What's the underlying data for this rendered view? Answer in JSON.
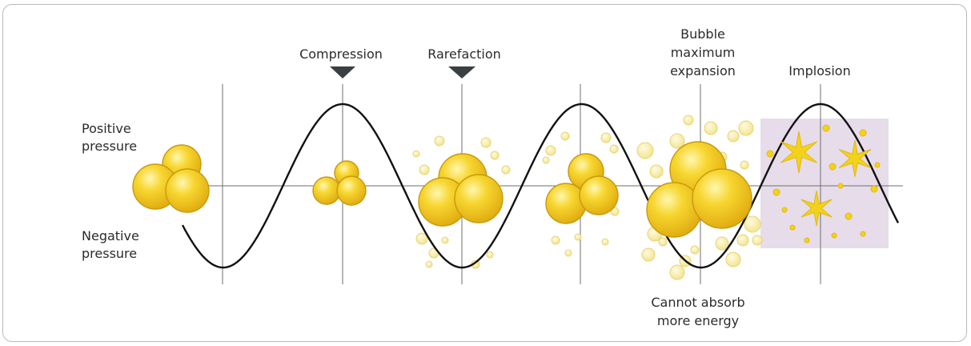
{
  "labels": {
    "positive_pressure": [
      "Positive",
      "pressure"
    ],
    "negative_pressure": [
      "Negative",
      "pressure"
    ],
    "compression": "Compression",
    "rarefaction": "Rarefaction",
    "bubble_max_expansion": [
      "Bubble",
      "maximum",
      "expansion"
    ],
    "implosion": "Implosion",
    "cannot_absorb": [
      "Cannot absorb",
      "more energy"
    ]
  },
  "colors": {
    "wave": "#111111",
    "axis": "#6f6f6f",
    "bubble_fill": "#f2cc1c",
    "bubble_light": "#fff6a6",
    "bubble_edge": "#c99a0c",
    "small_bubble": "#f6ec9c",
    "marker": "#3a3f42",
    "implosion_bg": "#e5dbe9",
    "star": "#f3d21a"
  }
}
